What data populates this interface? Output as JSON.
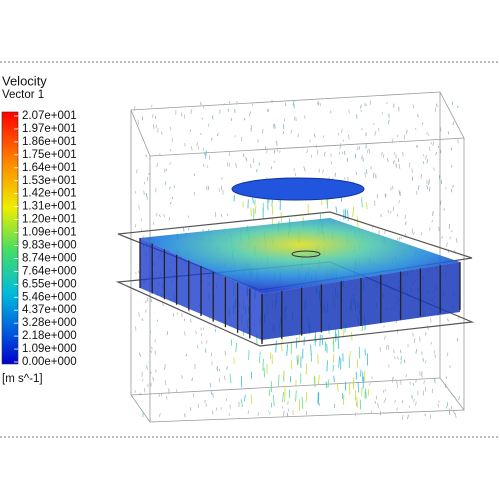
{
  "legend": {
    "title": "Velocity",
    "subtitle": "Vector 1",
    "labels": [
      "2.07e+001",
      "1.97e+001",
      "1.86e+001",
      "1.75e+001",
      "1.64e+001",
      "1.53e+001",
      "1.42e+001",
      "1.31e+001",
      "1.20e+001",
      "1.09e+001",
      "9.83e+000",
      "8.74e+000",
      "7.64e+000",
      "6.55e+000",
      "5.46e+000",
      "4.37e+000",
      "3.28e+000",
      "2.18e+000",
      "1.09e+000",
      "0.00e+000"
    ],
    "unit": "[m s^-1]"
  }
}
